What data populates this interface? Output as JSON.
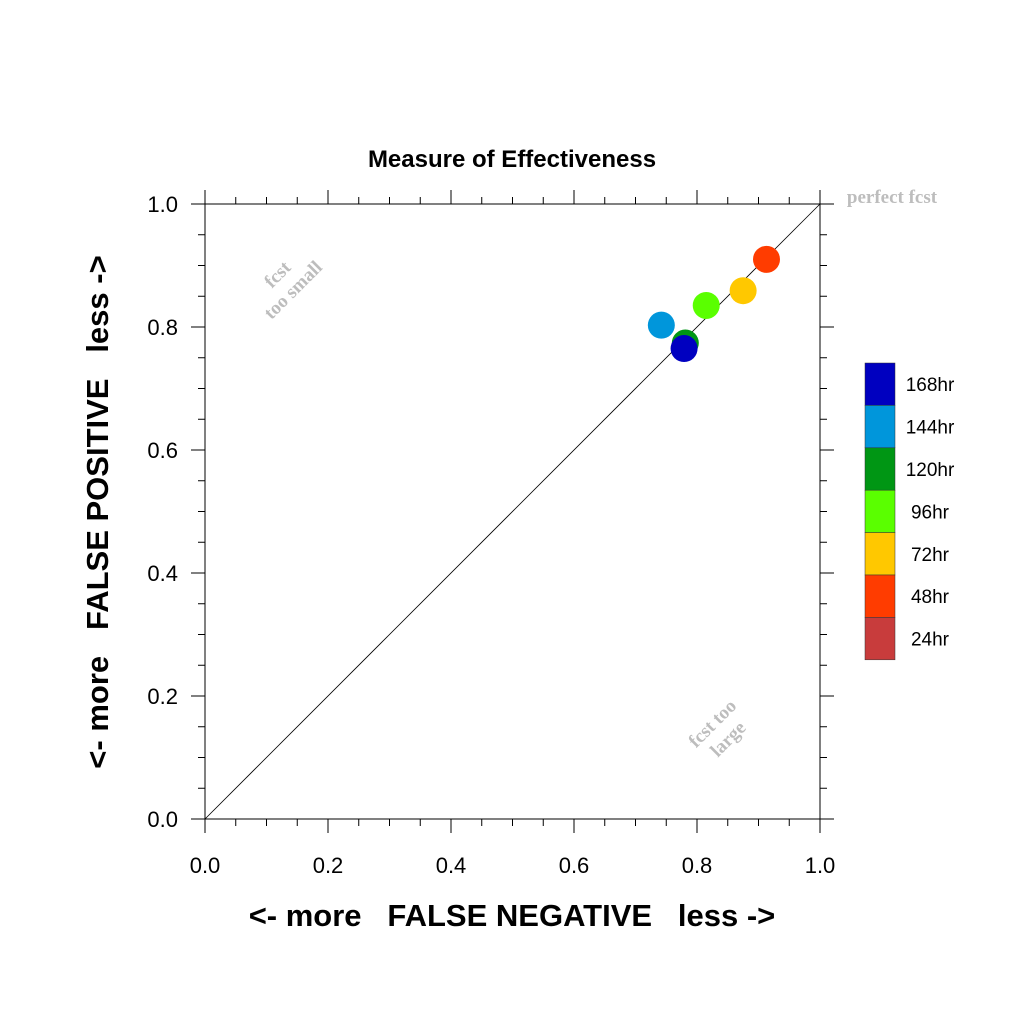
{
  "chart_data": {
    "type": "scatter",
    "title": "Measure of Effectiveness",
    "xlabel": "<- more   FALSE NEGATIVE   less ->",
    "ylabel": "<- more   FALSE POSITIVE   less ->",
    "xlim": [
      0.0,
      1.0
    ],
    "ylim": [
      0.0,
      1.0
    ],
    "xticks": [
      "0.0",
      "0.2",
      "0.4",
      "0.6",
      "0.8",
      "1.0"
    ],
    "yticks": [
      "0.0",
      "0.2",
      "0.4",
      "0.6",
      "0.8",
      "1.0"
    ],
    "grid": false,
    "reference_line": {
      "from": [
        0,
        0
      ],
      "to": [
        1,
        1
      ]
    },
    "annotations": {
      "perfect": "perfect fcst",
      "too_small": [
        "fcst",
        "too small"
      ],
      "too_large": [
        "fcst too",
        "large"
      ]
    },
    "legend_position": "right",
    "series": [
      {
        "name": "168hr",
        "color": "#0000c0",
        "x": 0.779,
        "y": 0.765
      },
      {
        "name": "144hr",
        "color": "#0096db",
        "x": 0.742,
        "y": 0.803
      },
      {
        "name": "120hr",
        "color": "#009614",
        "x": 0.781,
        "y": 0.774
      },
      {
        "name": "96hr",
        "color": "#5aff00",
        "x": 0.815,
        "y": 0.835
      },
      {
        "name": "72hr",
        "color": "#ffc800",
        "x": 0.875,
        "y": 0.859
      },
      {
        "name": "48hr",
        "color": "#ff3c00",
        "x": 0.913,
        "y": 0.91
      },
      {
        "name": "24hr",
        "color": "#c83c3c",
        "x": null,
        "y": null
      }
    ]
  }
}
